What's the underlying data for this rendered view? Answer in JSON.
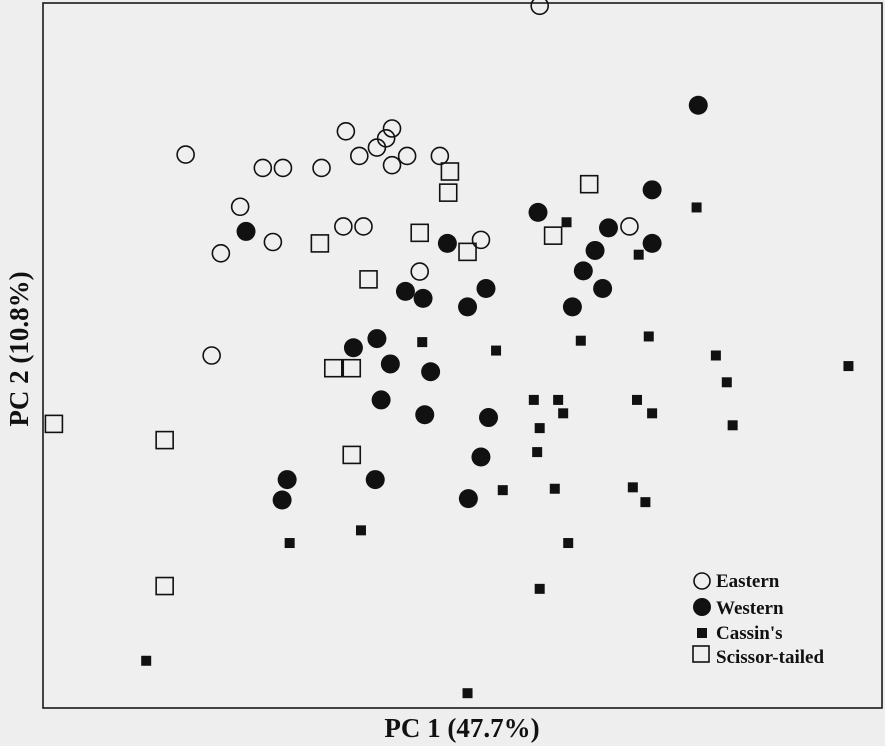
{
  "chart_data": {
    "type": "scatter",
    "title": "",
    "xlabel": "PC 1 (47.7%)",
    "ylabel": "PC 2 (10.8%)",
    "xlim": [
      0,
      100
    ],
    "ylim": [
      0,
      100
    ],
    "grid": false,
    "legend_position": "bottom-right",
    "series": [
      {
        "name": "Eastern",
        "marker": "open-circle",
        "color": "#111111",
        "points": [
          [
            59.2,
            99.6
          ],
          [
            17.0,
            78.5
          ],
          [
            26.2,
            76.6
          ],
          [
            28.6,
            76.6
          ],
          [
            33.2,
            76.6
          ],
          [
            36.1,
            81.8
          ],
          [
            37.7,
            78.3
          ],
          [
            39.8,
            79.5
          ],
          [
            40.9,
            80.8
          ],
          [
            41.6,
            77.0
          ],
          [
            43.4,
            78.3
          ],
          [
            47.3,
            78.3
          ],
          [
            41.6,
            82.2
          ],
          [
            23.5,
            71.1
          ],
          [
            21.2,
            64.5
          ],
          [
            27.4,
            66.1
          ],
          [
            35.8,
            68.3
          ],
          [
            38.2,
            68.3
          ],
          [
            44.9,
            61.9
          ],
          [
            52.2,
            66.4
          ],
          [
            20.1,
            50.0
          ],
          [
            69.9,
            68.3
          ]
        ]
      },
      {
        "name": "Western",
        "marker": "filled-circle",
        "color": "#111111",
        "points": [
          [
            78.1,
            85.5
          ],
          [
            24.2,
            67.6
          ],
          [
            48.2,
            65.9
          ],
          [
            59.0,
            70.3
          ],
          [
            72.6,
            73.5
          ],
          [
            72.6,
            65.9
          ],
          [
            67.4,
            68.1
          ],
          [
            65.8,
            64.9
          ],
          [
            64.4,
            62.0
          ],
          [
            66.7,
            59.5
          ],
          [
            63.1,
            56.9
          ],
          [
            52.8,
            59.5
          ],
          [
            50.6,
            56.9
          ],
          [
            43.2,
            59.1
          ],
          [
            45.3,
            58.1
          ],
          [
            39.8,
            52.4
          ],
          [
            37.0,
            51.1
          ],
          [
            41.4,
            48.8
          ],
          [
            46.2,
            47.7
          ],
          [
            40.3,
            43.7
          ],
          [
            45.5,
            41.6
          ],
          [
            53.1,
            41.2
          ],
          [
            52.2,
            35.6
          ],
          [
            29.1,
            32.4
          ],
          [
            28.5,
            29.5
          ],
          [
            39.6,
            32.4
          ],
          [
            50.7,
            29.7
          ]
        ]
      },
      {
        "name": "Cassin's",
        "marker": "filled-square",
        "color": "#111111",
        "points": [
          [
            62.4,
            68.9
          ],
          [
            71.0,
            64.3
          ],
          [
            45.2,
            51.9
          ],
          [
            54.0,
            50.7
          ],
          [
            64.1,
            52.1
          ],
          [
            72.2,
            52.7
          ],
          [
            77.9,
            71.0
          ],
          [
            80.2,
            50.0
          ],
          [
            81.5,
            46.2
          ],
          [
            96.0,
            48.5
          ],
          [
            82.2,
            40.1
          ],
          [
            58.5,
            43.7
          ],
          [
            61.4,
            43.7
          ],
          [
            59.2,
            39.7
          ],
          [
            62.0,
            41.8
          ],
          [
            70.8,
            43.7
          ],
          [
            72.6,
            41.8
          ],
          [
            58.9,
            36.3
          ],
          [
            54.8,
            30.9
          ],
          [
            61.0,
            31.1
          ],
          [
            70.3,
            31.3
          ],
          [
            71.8,
            29.2
          ],
          [
            62.6,
            23.4
          ],
          [
            29.4,
            23.4
          ],
          [
            37.9,
            25.2
          ],
          [
            59.2,
            16.9
          ],
          [
            12.3,
            6.7
          ],
          [
            50.6,
            2.1
          ]
        ]
      },
      {
        "name": "Scissor-tailed",
        "marker": "open-square",
        "color": "#111111",
        "points": [
          [
            48.5,
            76.1
          ],
          [
            48.3,
            73.1
          ],
          [
            65.1,
            74.3
          ],
          [
            33.0,
            65.9
          ],
          [
            44.9,
            67.4
          ],
          [
            50.6,
            64.7
          ],
          [
            60.8,
            67.0
          ],
          [
            38.8,
            60.8
          ],
          [
            34.6,
            48.2
          ],
          [
            36.8,
            48.2
          ],
          [
            1.3,
            40.3
          ],
          [
            14.5,
            38.0
          ],
          [
            36.8,
            35.9
          ],
          [
            14.5,
            17.3
          ]
        ]
      }
    ]
  },
  "legend": {
    "items": [
      {
        "label": "Eastern",
        "marker": "open-circle"
      },
      {
        "label": "Western",
        "marker": "filled-circle"
      },
      {
        "label": "Cassin's",
        "marker": "filled-square"
      },
      {
        "label": "Scissor-tailed",
        "marker": "open-square"
      }
    ]
  }
}
